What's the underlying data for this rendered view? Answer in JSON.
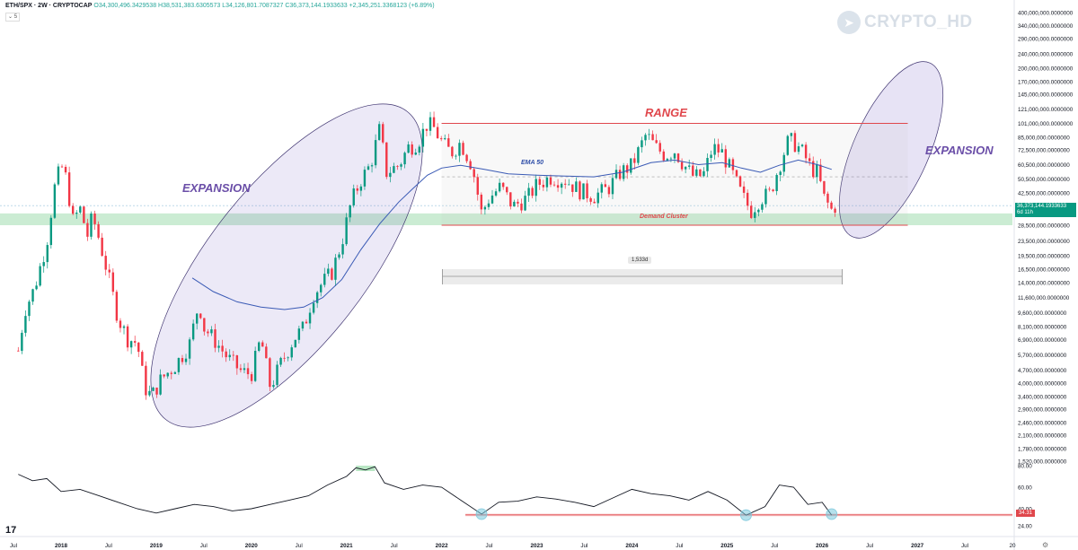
{
  "header": {
    "symbol": "ETH/SPX · 2W · CRYPTOCAP",
    "ohlc": "O34,300,496.3429538 H38,531,383.6305573 L34,126,801.7087327 C36,373,144.1933633 +2,345,251.3368123 (+6.89%)",
    "sub": "⌄ 5"
  },
  "watermark": {
    "text": "CRYPTO_HD",
    "icon": "telegram-icon"
  },
  "annotations": {
    "expansion_left": "EXPANSION",
    "expansion_right": "EXPANSION",
    "range": "RANGE",
    "ema": "EMA 50",
    "demand": "Demand Cluster",
    "duration": "1,533d"
  },
  "price_badge": {
    "value": "36,373,144.1933633",
    "sub": "6d 11h"
  },
  "rsi_badge": {
    "value": "34.31"
  },
  "colors": {
    "up": "#089981",
    "down": "#f23645",
    "ema": "#3a5ab5",
    "range": "#e0474c",
    "ellipse": "#6b4fa8",
    "demand_zone": "#b9e6c4"
  },
  "chart_data": {
    "type": "candlestick",
    "title": "ETH/SPX · 2W · CRYPTOCAP",
    "y_scale": "log",
    "ylim": [
      1520000,
      400000000
    ],
    "y_ticks": [
      "400,000,000.0000000",
      "340,000,000.0000000",
      "290,000,000.0000000",
      "240,000,000.0000000",
      "200,000,000.0000000",
      "170,000,000.0000000",
      "145,000,000.0000000",
      "121,000,000.0000000",
      "101,000,000.0000000",
      "85,000,000.0000000",
      "72,500,000.0000000",
      "60,500,000.0000000",
      "50,500,000.0000000",
      "42,500,000.0000000",
      "28,500,000.0000000",
      "23,500,000.0000000",
      "19,500,000.0000000",
      "16,500,000.0000000",
      "14,000,000.0000000",
      "11,600,000.0000000",
      "9,600,000.0000000",
      "8,100,000.0000000",
      "6,900,000.0000000",
      "5,700,000.0000000",
      "4,700,000.0000000",
      "4,000,000.0000000",
      "3,400,000.0000000",
      "2,900,000.0000000",
      "2,460,000.0000000",
      "2,100,000.0000000",
      "1,780,000.0000000",
      "1,520,000.0000000"
    ],
    "y_tick_values": [
      400000000,
      340000000,
      290000000,
      240000000,
      200000000,
      170000000,
      145000000,
      121000000,
      101000000,
      85000000,
      72500000,
      60500000,
      50500000,
      42500000,
      28500000,
      23500000,
      19500000,
      16500000,
      14000000,
      11600000,
      9600000,
      8100000,
      6900000,
      5700000,
      4700000,
      4000000,
      3400000,
      2900000,
      2460000,
      2100000,
      1780000,
      1520000
    ],
    "x_ticks": [
      "Jul",
      "2018",
      "Jul",
      "2019",
      "Jul",
      "2020",
      "Jul",
      "2021",
      "Jul",
      "2022",
      "Jul",
      "2023",
      "Jul",
      "2024",
      "Jul",
      "2025",
      "Jul",
      "2026",
      "Jul",
      "2027",
      "Jul",
      "20"
    ],
    "x_tick_dates": [
      2017.5,
      2018,
      2018.5,
      2019,
      2019.5,
      2020,
      2020.5,
      2021,
      2021.5,
      2022,
      2022.5,
      2023,
      2023.5,
      2024,
      2024.5,
      2025,
      2025.5,
      2026,
      2026.5,
      2027,
      2027.5,
      2028
    ],
    "close_path": [
      [
        2017.55,
        6000000
      ],
      [
        2017.62,
        10000000
      ],
      [
        2017.72,
        13000000
      ],
      [
        2017.85,
        23000000
      ],
      [
        2017.93,
        45000000
      ],
      [
        2018.0,
        60000000
      ],
      [
        2018.06,
        50000000
      ],
      [
        2018.12,
        30000000
      ],
      [
        2018.2,
        35000000
      ],
      [
        2018.28,
        25000000
      ],
      [
        2018.33,
        32000000
      ],
      [
        2018.4,
        24000000
      ],
      [
        2018.5,
        15000000
      ],
      [
        2018.6,
        9000000
      ],
      [
        2018.7,
        7000000
      ],
      [
        2018.8,
        6600000
      ],
      [
        2018.88,
        3800000
      ],
      [
        2018.95,
        3400000
      ],
      [
        2019.05,
        4200000
      ],
      [
        2019.2,
        5000000
      ],
      [
        2019.35,
        6500000
      ],
      [
        2019.45,
        11000000
      ],
      [
        2019.5,
        8000000
      ],
      [
        2019.6,
        7000000
      ],
      [
        2019.75,
        5500000
      ],
      [
        2019.9,
        4600000
      ],
      [
        2020.0,
        4500000
      ],
      [
        2020.1,
        7000000
      ],
      [
        2020.2,
        3800000
      ],
      [
        2020.3,
        5000000
      ],
      [
        2020.45,
        7000000
      ],
      [
        2020.55,
        8000000
      ],
      [
        2020.65,
        12000000
      ],
      [
        2020.75,
        14000000
      ],
      [
        2020.85,
        16000000
      ],
      [
        2020.95,
        23000000
      ],
      [
        2021.05,
        38000000
      ],
      [
        2021.15,
        50000000
      ],
      [
        2021.25,
        60000000
      ],
      [
        2021.35,
        95000000
      ],
      [
        2021.42,
        55000000
      ],
      [
        2021.55,
        60000000
      ],
      [
        2021.65,
        75000000
      ],
      [
        2021.75,
        80000000
      ],
      [
        2021.85,
        101000000
      ],
      [
        2021.92,
        95000000
      ],
      [
        2022.0,
        80000000
      ],
      [
        2022.1,
        70000000
      ],
      [
        2022.2,
        80000000
      ],
      [
        2022.32,
        60000000
      ],
      [
        2022.42,
        33000000
      ],
      [
        2022.5,
        40000000
      ],
      [
        2022.62,
        46000000
      ],
      [
        2022.75,
        36000000
      ],
      [
        2022.9,
        40000000
      ],
      [
        2023.0,
        47000000
      ],
      [
        2023.15,
        52000000
      ],
      [
        2023.3,
        50000000
      ],
      [
        2023.45,
        44000000
      ],
      [
        2023.6,
        41000000
      ],
      [
        2023.75,
        45000000
      ],
      [
        2023.88,
        55000000
      ],
      [
        2024.0,
        60000000
      ],
      [
        2024.15,
        88000000
      ],
      [
        2024.25,
        75000000
      ],
      [
        2024.35,
        68000000
      ],
      [
        2024.45,
        72000000
      ],
      [
        2024.55,
        60000000
      ],
      [
        2024.65,
        52000000
      ],
      [
        2024.75,
        53000000
      ],
      [
        2024.85,
        75000000
      ],
      [
        2024.95,
        70000000
      ],
      [
        2025.05,
        55000000
      ],
      [
        2025.15,
        42000000
      ],
      [
        2025.25,
        34000000
      ],
      [
        2025.35,
        40000000
      ],
      [
        2025.45,
        42000000
      ],
      [
        2025.55,
        60000000
      ],
      [
        2025.65,
        83000000
      ],
      [
        2025.72,
        78000000
      ],
      [
        2025.8,
        70000000
      ],
      [
        2025.88,
        58000000
      ],
      [
        2025.95,
        55000000
      ],
      [
        2026.02,
        40000000
      ],
      [
        2026.1,
        34300000
      ],
      [
        2026.14,
        36373144
      ]
    ],
    "ema50_path": [
      [
        2019.38,
        14800000
      ],
      [
        2019.6,
        12500000
      ],
      [
        2019.85,
        11000000
      ],
      [
        2020.1,
        10300000
      ],
      [
        2020.35,
        10000000
      ],
      [
        2020.55,
        10300000
      ],
      [
        2020.75,
        11600000
      ],
      [
        2020.95,
        14500000
      ],
      [
        2021.15,
        21000000
      ],
      [
        2021.35,
        29000000
      ],
      [
        2021.55,
        38000000
      ],
      [
        2021.7,
        45000000
      ],
      [
        2021.85,
        53000000
      ],
      [
        2022.0,
        58000000
      ],
      [
        2022.2,
        60000000
      ],
      [
        2022.45,
        57000000
      ],
      [
        2022.7,
        54000000
      ],
      [
        2023.0,
        53000000
      ],
      [
        2023.3,
        52500000
      ],
      [
        2023.6,
        52000000
      ],
      [
        2023.9,
        55000000
      ],
      [
        2024.2,
        62000000
      ],
      [
        2024.45,
        64000000
      ],
      [
        2024.7,
        60500000
      ],
      [
        2024.95,
        62000000
      ],
      [
        2025.15,
        58000000
      ],
      [
        2025.35,
        55000000
      ],
      [
        2025.55,
        60000000
      ],
      [
        2025.75,
        64000000
      ],
      [
        2025.95,
        60500000
      ],
      [
        2026.1,
        57000000
      ]
    ],
    "range_box": {
      "top": 101000000,
      "bottom": 28500000,
      "x_start": 2022.0,
      "x_end": 2026.9
    },
    "demand_zone": {
      "top": 33000000,
      "bottom": 28500000
    },
    "current_price": 36373144.1933633,
    "rsi": {
      "ylim": [
        20,
        80
      ],
      "y_ticks": [
        "80.00",
        "60.00",
        "40.00",
        "24.00"
      ],
      "y_tick_values": [
        80,
        60,
        40,
        24
      ],
      "support": 34.31,
      "path": [
        [
          2017.55,
          72
        ],
        [
          2017.7,
          66
        ],
        [
          2017.85,
          68
        ],
        [
          2018.0,
          56
        ],
        [
          2018.2,
          58
        ],
        [
          2018.4,
          52
        ],
        [
          2018.6,
          46
        ],
        [
          2018.8,
          40
        ],
        [
          2019.0,
          36
        ],
        [
          2019.2,
          40
        ],
        [
          2019.4,
          44
        ],
        [
          2019.6,
          42
        ],
        [
          2019.8,
          38
        ],
        [
          2020.0,
          40
        ],
        [
          2020.2,
          44
        ],
        [
          2020.4,
          48
        ],
        [
          2020.6,
          52
        ],
        [
          2020.8,
          62
        ],
        [
          2021.0,
          70
        ],
        [
          2021.1,
          78
        ],
        [
          2021.2,
          76
        ],
        [
          2021.3,
          79
        ],
        [
          2021.4,
          64
        ],
        [
          2021.6,
          58
        ],
        [
          2021.8,
          62
        ],
        [
          2022.0,
          60
        ],
        [
          2022.2,
          48
        ],
        [
          2022.42,
          35
        ],
        [
          2022.6,
          46
        ],
        [
          2022.8,
          47
        ],
        [
          2023.0,
          51
        ],
        [
          2023.2,
          49
        ],
        [
          2023.4,
          46
        ],
        [
          2023.6,
          42
        ],
        [
          2023.8,
          50
        ],
        [
          2024.0,
          58
        ],
        [
          2024.2,
          54
        ],
        [
          2024.4,
          52
        ],
        [
          2024.6,
          48
        ],
        [
          2024.8,
          56
        ],
        [
          2025.0,
          48
        ],
        [
          2025.2,
          34
        ],
        [
          2025.4,
          42
        ],
        [
          2025.55,
          62
        ],
        [
          2025.7,
          60
        ],
        [
          2025.85,
          44
        ],
        [
          2026.0,
          46
        ],
        [
          2026.1,
          34
        ]
      ],
      "touch_points": [
        [
          2022.42,
          35
        ],
        [
          2025.2,
          34
        ],
        [
          2026.1,
          35
        ]
      ],
      "overbought_highlight": [
        2021.1,
        2021.3
      ]
    }
  }
}
